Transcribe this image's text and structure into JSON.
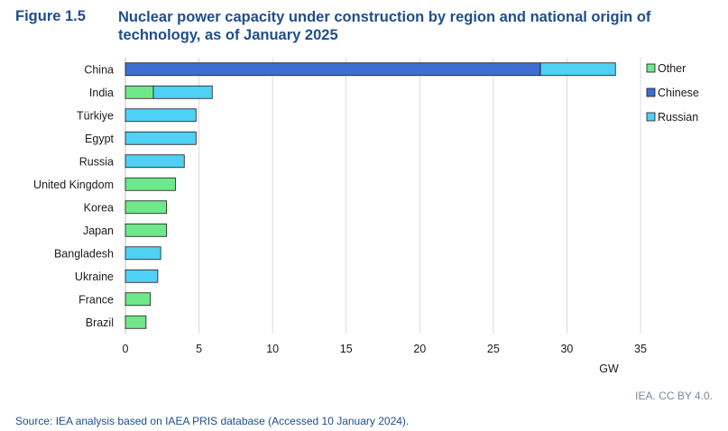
{
  "figure": {
    "number": "Figure 1.5",
    "title": "Nuclear power capacity under construction by region and national origin of technology, as of January 2025",
    "credit": "IEA. CC BY 4.0.",
    "source": "Source: IEA analysis based on IAEA PRIS database (Accessed 10 January 2024)."
  },
  "chart_data": {
    "type": "bar",
    "orientation": "horizontal",
    "stacked": true,
    "xlabel": "GW",
    "ylabel": "",
    "xlim": [
      0,
      35
    ],
    "xticks": [
      0,
      5,
      10,
      15,
      20,
      25,
      30,
      35
    ],
    "grid": true,
    "legend_position": "right",
    "categories": [
      "China",
      "India",
      "Türkiye",
      "Egypt",
      "Russia",
      "United Kingdom",
      "Korea",
      "Japan",
      "Bangladesh",
      "Ukraine",
      "France",
      "Brazil"
    ],
    "series": [
      {
        "name": "Other",
        "color": "#6ee88a",
        "values": [
          0,
          1.9,
          0,
          0,
          0,
          3.4,
          2.8,
          2.8,
          0,
          0,
          1.7,
          1.4
        ]
      },
      {
        "name": "Chinese",
        "color": "#3b6fd4",
        "values": [
          28.2,
          0,
          0,
          0,
          0,
          0,
          0,
          0,
          0,
          0,
          0,
          0
        ]
      },
      {
        "name": "Russian",
        "color": "#4fd0f5",
        "values": [
          5.1,
          4.0,
          4.8,
          4.8,
          4.0,
          0,
          0,
          0,
          2.4,
          2.2,
          0,
          0
        ]
      }
    ]
  }
}
